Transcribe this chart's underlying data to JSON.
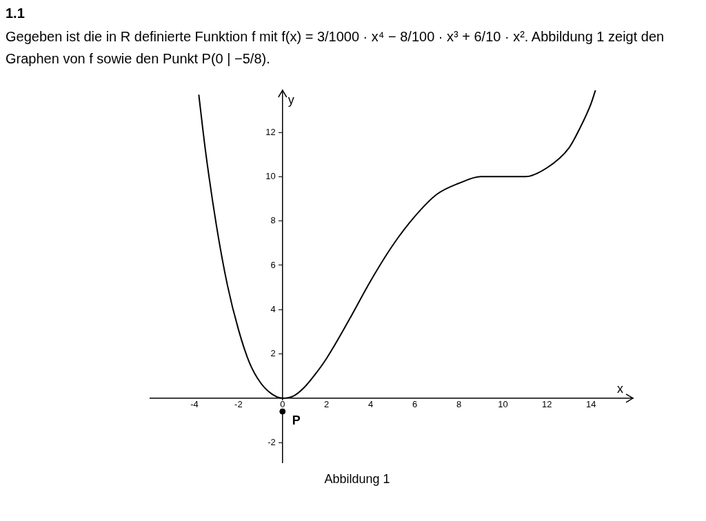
{
  "chart_data": {
    "type": "line",
    "title": "1.1",
    "subtitle": "Gegeben ist die in R definierte Funktion f mit f(x) = 3/1000 · x⁴ − 8/100 · x³ + 6/10 · x². Abbildung 1 zeigt den Graphen von f sowie den Punkt P(0 | −5/8).",
    "xlabel": "x",
    "ylabel": "y",
    "xlim": [
      -6,
      15.9
    ],
    "ylim": [
      -2.9,
      13.9
    ],
    "xticks": [
      -4,
      -2,
      0,
      2,
      4,
      6,
      8,
      10,
      12,
      14
    ],
    "yticks": [
      -2,
      2,
      4,
      6,
      8,
      10,
      12
    ],
    "grid": false,
    "legend": false,
    "series": [
      {
        "color": "#000000",
        "x": [
          -3.8,
          -3.5,
          -3,
          -2.5,
          -2,
          -1.5,
          -1,
          -0.5,
          0,
          0.5,
          1,
          1.5,
          2,
          3,
          4,
          5,
          6,
          7,
          8,
          9,
          10,
          11,
          12,
          13,
          13.5,
          14,
          14.2
        ],
        "values": [
          13.7,
          11.2,
          7.8,
          5.1,
          3.1,
          1.6,
          0.7,
          0.2,
          0,
          0.1,
          0.5,
          1.1,
          1.8,
          3.5,
          5.3,
          6.9,
          8.2,
          9.2,
          9.7,
          10,
          10,
          10,
          10.4,
          11.3,
          12.2,
          13.3,
          13.9
        ]
      },
      {
        "type": "scatter",
        "color": "#000000",
        "x": [
          0
        ],
        "values": [
          -0.6
        ]
      }
    ],
    "annotations": [
      {
        "text": "P",
        "x": 0,
        "y": -0.6
      },
      "Abbildung 1"
    ]
  }
}
